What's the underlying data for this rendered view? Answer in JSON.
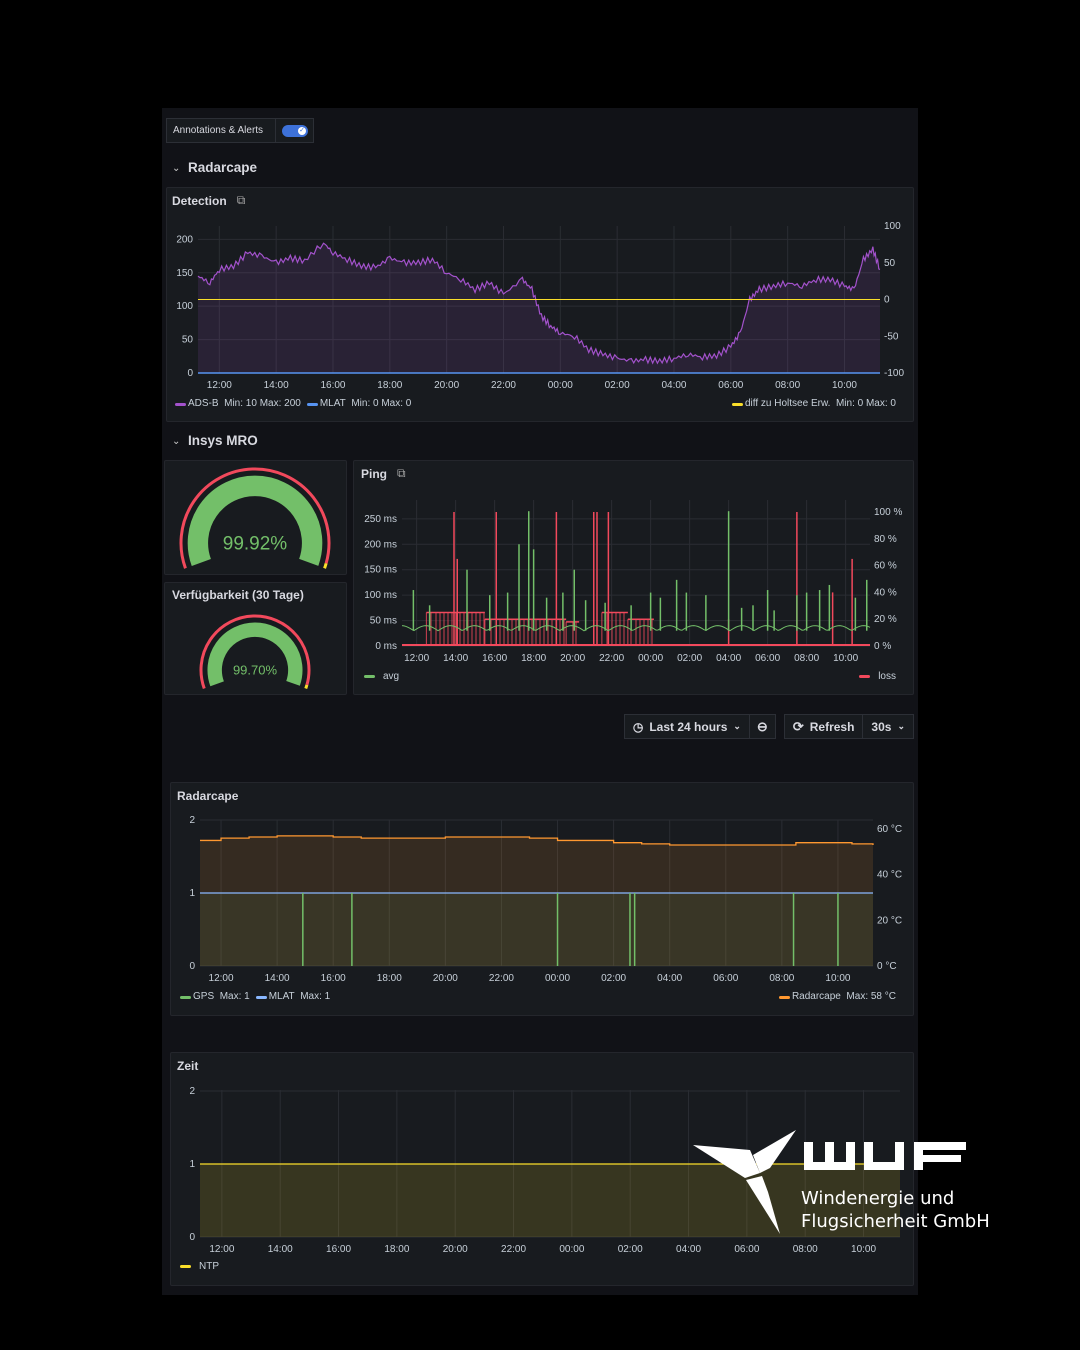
{
  "toolbar": {
    "annotations_label": "Annotations & Alerts",
    "annotations_enabled": true,
    "time_range": "Last 24 hours",
    "refresh_label": "Refresh",
    "refresh_interval": "30s"
  },
  "rows": [
    {
      "title": "Radarcape"
    },
    {
      "title": "Insys MRO"
    }
  ],
  "colors": {
    "purple": "#a352cc",
    "blue": "#5794f2",
    "yellow": "#fade2a",
    "green": "#73bf69",
    "red": "#f2495c",
    "orange": "#ff9830",
    "light_blue": "#8ab8ff"
  },
  "x_ticks": [
    "12:00",
    "14:00",
    "16:00",
    "18:00",
    "20:00",
    "22:00",
    "00:00",
    "02:00",
    "04:00",
    "06:00",
    "08:00",
    "10:00"
  ],
  "detection": {
    "title": "Detection",
    "left_ticks": [
      "0",
      "50",
      "100",
      "150",
      "200"
    ],
    "right_ticks": [
      "-100",
      "-50",
      "0",
      "50",
      "100"
    ],
    "legend": [
      {
        "label": "ADS-B",
        "stats": "Min: 10  Max: 200",
        "color": "#a352cc"
      },
      {
        "label": "MLAT",
        "stats": "Min: 0  Max: 0",
        "color": "#5794f2"
      },
      {
        "label": "diff zu Holtsee Erw.",
        "stats": "Min: 0  Max: 0",
        "color": "#fade2a"
      }
    ]
  },
  "gauges": [
    {
      "title": "",
      "value": "99.92%",
      "fraction": 0.9992
    },
    {
      "title": "Verfügbarkeit (30 Tage)",
      "value": "99.70%",
      "fraction": 0.997
    }
  ],
  "ping": {
    "title": "Ping",
    "left_ticks": [
      "0 ms",
      "50 ms",
      "100 ms",
      "150 ms",
      "200 ms",
      "250 ms"
    ],
    "right_ticks": [
      "0 %",
      "20 %",
      "40 %",
      "60 %",
      "80 %",
      "100 %"
    ],
    "legend": [
      {
        "label": "avg",
        "color": "#73bf69"
      },
      {
        "label": "loss",
        "color": "#f2495c"
      }
    ]
  },
  "radarcape2": {
    "title": "Radarcape",
    "left_ticks": [
      "0",
      "1",
      "2"
    ],
    "right_ticks": [
      "0 °C",
      "20 °C",
      "40 °C",
      "60 °C"
    ],
    "legend": [
      {
        "label": "GPS",
        "stats": "Max: 1",
        "color": "#73bf69"
      },
      {
        "label": "MLAT",
        "stats": "Max: 1",
        "color": "#8ab8ff"
      },
      {
        "label": "Radarcape",
        "stats": "Max: 58 °C",
        "color": "#ff9830"
      }
    ]
  },
  "zeit": {
    "title": "Zeit",
    "left_ticks": [
      "0",
      "1",
      "2"
    ],
    "legend": [
      {
        "label": "NTP",
        "color": "#fade2a"
      }
    ]
  },
  "logo": {
    "mark": "WUF",
    "line1": "Windenergie und",
    "line2": "Flugsicherheit GmbH"
  },
  "chart_data": [
    {
      "type": "line",
      "title": "Detection",
      "x_range": [
        "11:15",
        "11:15"
      ],
      "ylim_left": [
        0,
        220
      ],
      "ylim_right": [
        -100,
        100
      ],
      "series": [
        {
          "name": "ADS-B",
          "axis": "left",
          "x": [
            "11:15",
            "11:40",
            "12:00",
            "12:30",
            "13:00",
            "13:30",
            "14:00",
            "14:30",
            "15:00",
            "15:40",
            "16:00",
            "16:30",
            "17:00",
            "17:30",
            "18:00",
            "18:30",
            "19:00",
            "19:30",
            "20:00",
            "20:30",
            "21:00",
            "21:30",
            "22:00",
            "22:40",
            "23:00",
            "23:20",
            "23:40",
            "00:00",
            "00:30",
            "01:00",
            "01:30",
            "02:00",
            "02:30",
            "03:00",
            "03:30",
            "04:00",
            "04:30",
            "05:00",
            "05:30",
            "06:00",
            "06:20",
            "06:40",
            "07:00",
            "07:30",
            "08:00",
            "08:30",
            "09:00",
            "09:30",
            "10:00",
            "10:20",
            "10:40",
            "11:00",
            "11:15"
          ],
          "values": [
            145,
            135,
            155,
            160,
            180,
            175,
            165,
            172,
            168,
            195,
            180,
            170,
            160,
            158,
            172,
            165,
            165,
            170,
            150,
            140,
            125,
            135,
            118,
            140,
            125,
            85,
            70,
            60,
            55,
            35,
            28,
            22,
            18,
            20,
            18,
            22,
            28,
            24,
            26,
            40,
            60,
            110,
            125,
            130,
            135,
            130,
            140,
            140,
            130,
            125,
            170,
            185,
            155
          ]
        },
        {
          "name": "MLAT",
          "axis": "left",
          "x": [
            "11:15",
            "11:15"
          ],
          "values": [
            0,
            0
          ]
        },
        {
          "name": "diff zu Holtsee Erw.",
          "axis": "right",
          "x": [
            "11:15",
            "11:15"
          ],
          "values": [
            0,
            0
          ]
        }
      ]
    },
    {
      "type": "line",
      "title": "Ping",
      "ylim_left": [
        0,
        287
      ],
      "ylim_right": [
        0,
        100
      ],
      "series": [
        {
          "name": "avg",
          "axis": "left",
          "baseline": 30,
          "spikes": [
            [
              "11:50",
              110
            ],
            [
              "12:40",
              80
            ],
            [
              "14:35",
              150
            ],
            [
              "15:45",
              100
            ],
            [
              "16:40",
              105
            ],
            [
              "17:15",
              200
            ],
            [
              "17:45",
              265
            ],
            [
              "18:00",
              190
            ],
            [
              "18:40",
              95
            ],
            [
              "19:30",
              105
            ],
            [
              "20:05",
              150
            ],
            [
              "20:40",
              90
            ],
            [
              "21:40",
              85
            ],
            [
              "23:00",
              80
            ],
            [
              "00:00",
              105
            ],
            [
              "00:30",
              95
            ],
            [
              "01:20",
              130
            ],
            [
              "01:50",
              105
            ],
            [
              "02:50",
              100
            ],
            [
              "04:00",
              265
            ],
            [
              "04:40",
              75
            ],
            [
              "05:15",
              80
            ],
            [
              "06:00",
              110
            ],
            [
              "06:20",
              70
            ],
            [
              "07:30",
              100
            ],
            [
              "08:00",
              105
            ],
            [
              "08:40",
              110
            ],
            [
              "09:10",
              120
            ],
            [
              "10:30",
              95
            ],
            [
              "11:05",
              130
            ]
          ]
        },
        {
          "name": "loss",
          "axis": "right",
          "segments": [
            [
              "12:30",
              "15:30",
              25
            ],
            [
              "15:30",
              "19:40",
              20
            ],
            [
              "19:40",
              "20:20",
              18
            ],
            [
              "21:30",
              "22:50",
              25
            ],
            [
              "22:50",
              "00:10",
              20
            ]
          ],
          "spikes": [
            [
              "13:55",
              100
            ],
            [
              "14:05",
              65
            ],
            [
              "16:05",
              100
            ],
            [
              "19:10",
              100
            ],
            [
              "21:05",
              100
            ],
            [
              "21:15",
              100
            ],
            [
              "21:50",
              100
            ],
            [
              "04:00",
              20
            ],
            [
              "07:30",
              100
            ],
            [
              "09:20",
              40
            ],
            [
              "10:20",
              65
            ]
          ]
        }
      ]
    },
    {
      "type": "line",
      "title": "Radarcape",
      "ylim_left": [
        0,
        2
      ],
      "ylim_right": [
        0,
        60
      ],
      "series": [
        {
          "name": "Radarcape",
          "axis": "right",
          "unit": "°C",
          "x": [
            "11:15",
            "12:00",
            "13:00",
            "14:00",
            "15:00",
            "16:00",
            "17:00",
            "20:00",
            "22:00",
            "23:00",
            "00:00",
            "01:00",
            "02:00",
            "03:00",
            "04:00",
            "06:00",
            "08:00",
            "08:30",
            "10:00",
            "10:30",
            "11:15"
          ],
          "values": [
            55,
            56,
            56.5,
            57,
            57,
            56.5,
            56,
            56.5,
            56.5,
            56,
            55,
            55,
            54,
            53.5,
            53,
            53,
            53,
            54,
            54,
            53.5,
            53
          ]
        },
        {
          "name": "MLAT",
          "axis": "left",
          "x": [
            "11:15",
            "11:15"
          ],
          "values": [
            1,
            1
          ]
        },
        {
          "name": "GPS",
          "axis": "left",
          "base": 1,
          "dropouts_to_0": [
            "14:55",
            "16:40",
            "00:00",
            "02:35",
            "02:45",
            "08:25",
            "10:00"
          ]
        }
      ]
    },
    {
      "type": "area",
      "title": "Zeit",
      "ylim": [
        0,
        2
      ],
      "series": [
        {
          "name": "NTP",
          "x": [
            "11:15",
            "11:15"
          ],
          "values": [
            1,
            1
          ]
        }
      ]
    }
  ]
}
